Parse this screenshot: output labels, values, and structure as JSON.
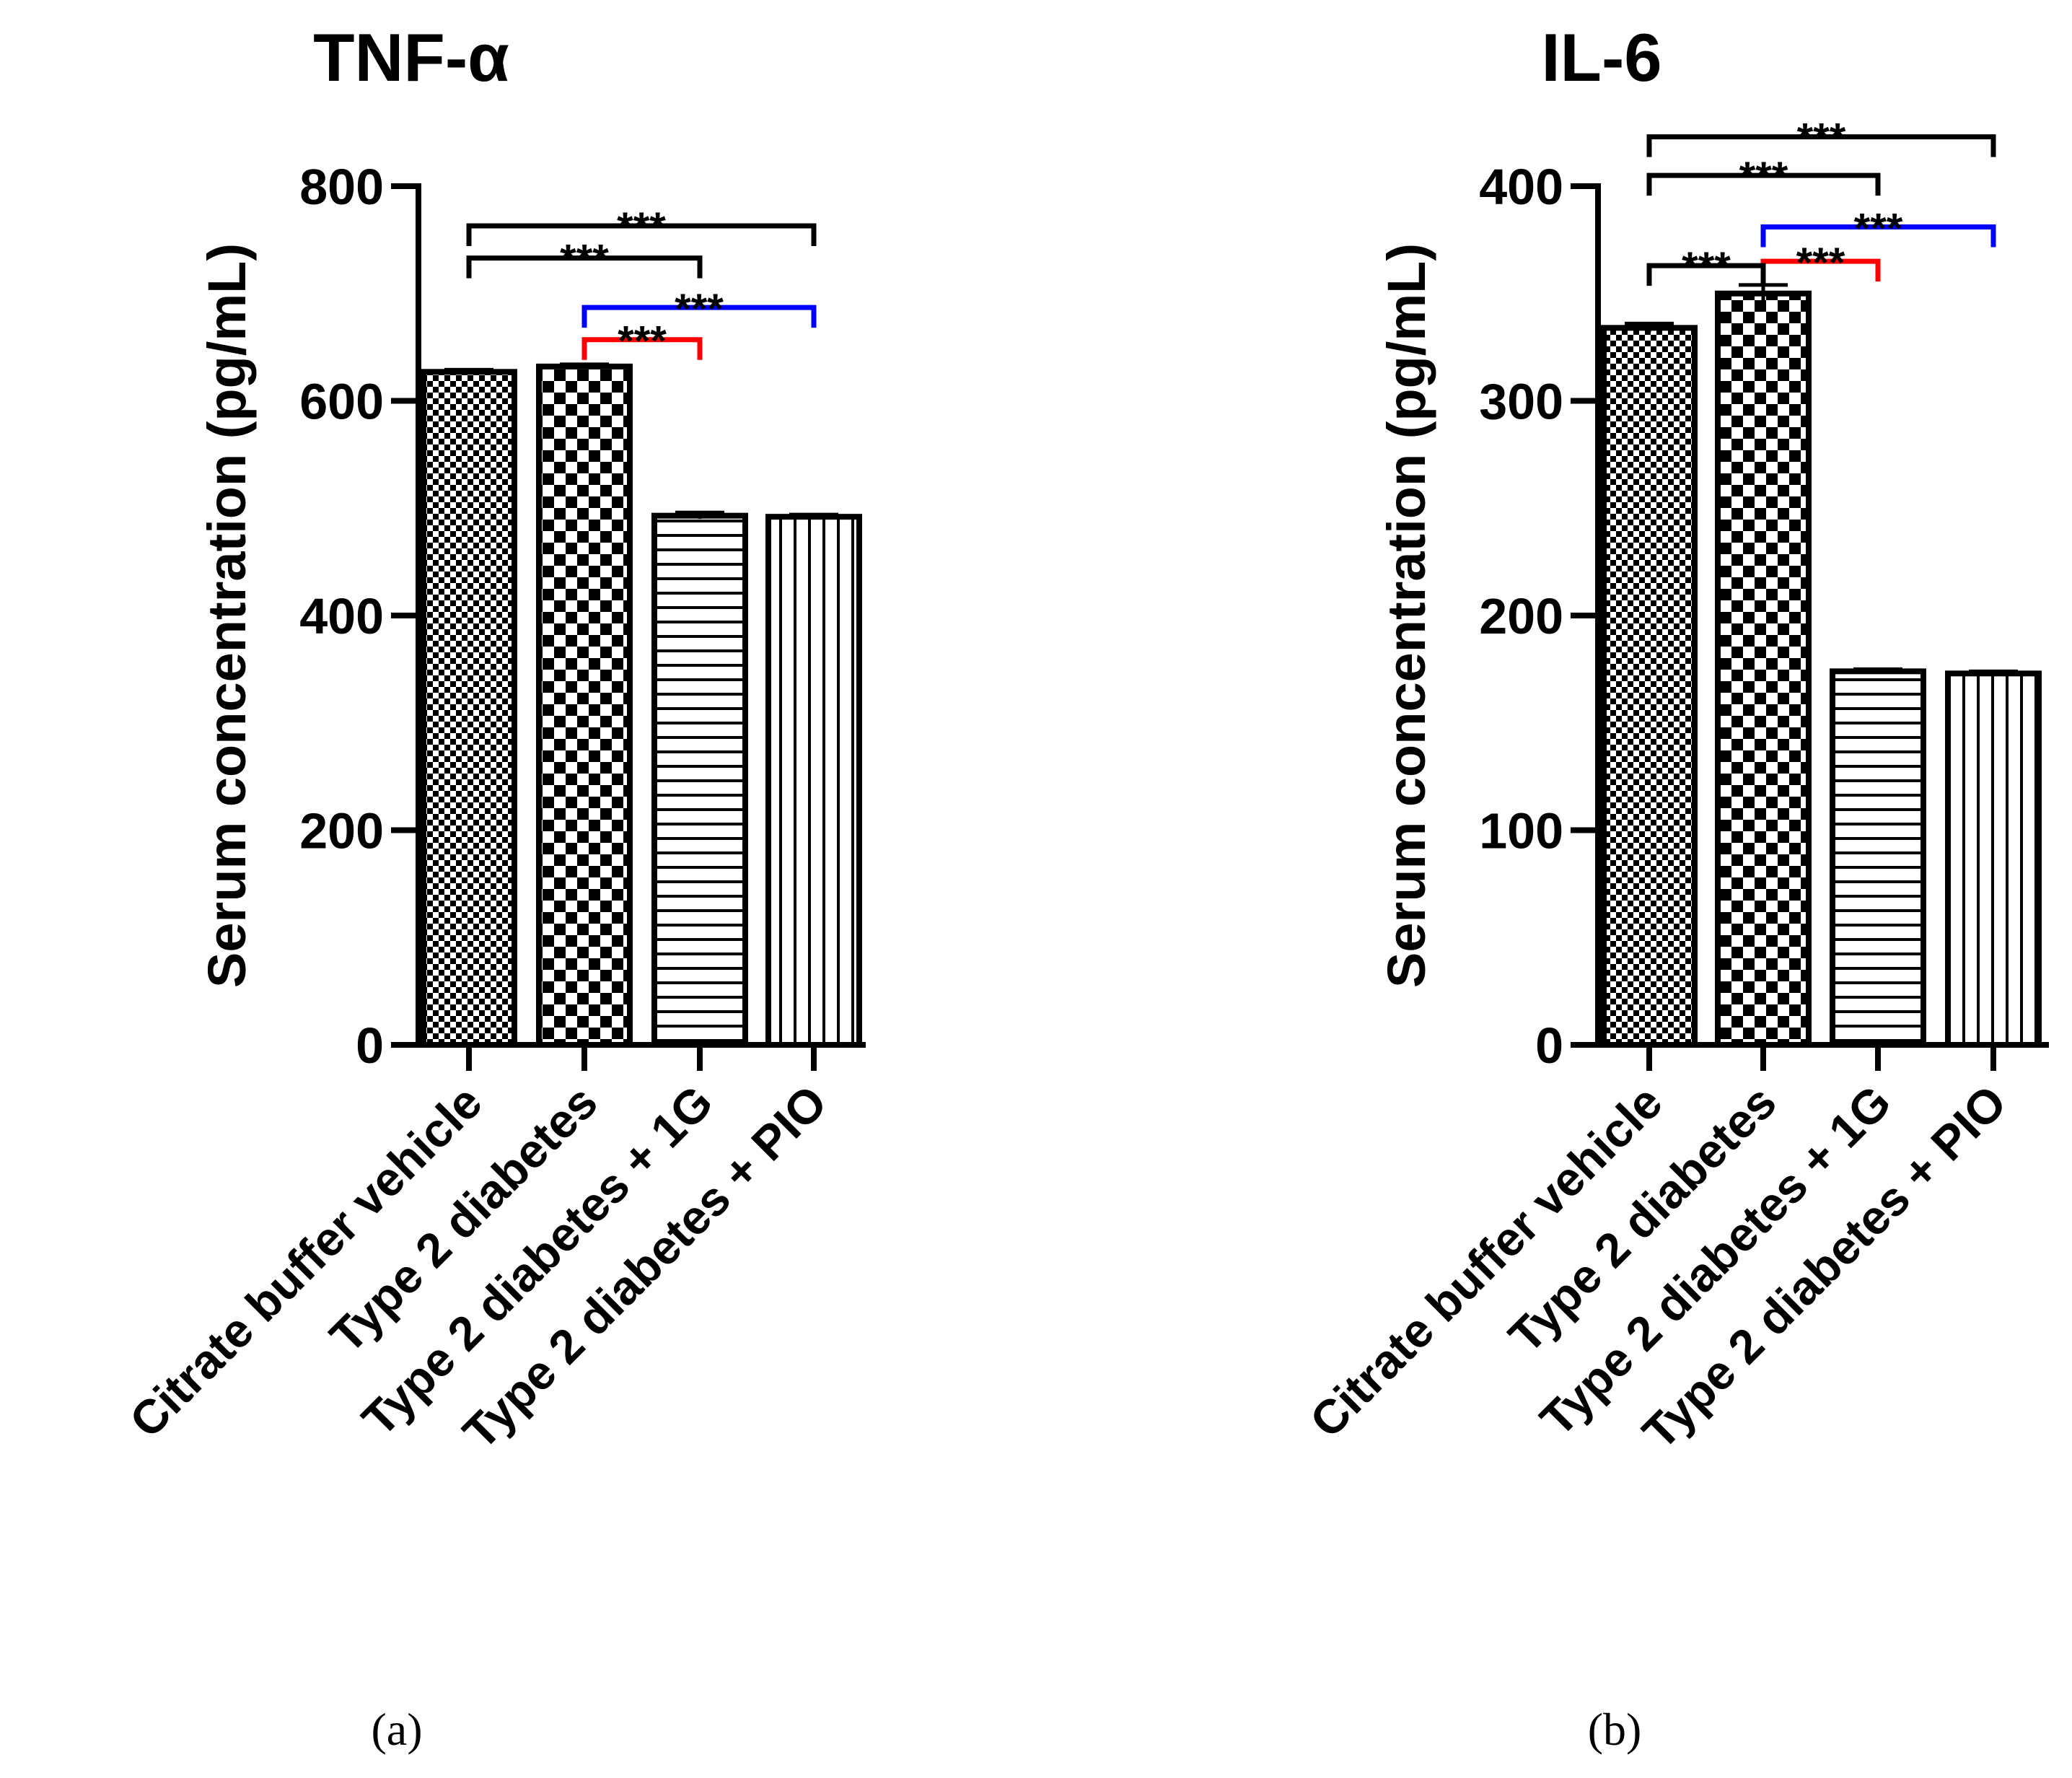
{
  "figure": {
    "colors": {
      "black": "#000000",
      "red": "#ff0000",
      "blue": "#0000ff"
    },
    "significance_label": "***"
  },
  "chart_data": [
    {
      "type": "bar",
      "panel": "a",
      "caption": "(a)",
      "title": "TNF-α",
      "ylabel": "Serum concentration (pg/mL)",
      "xlabel": "",
      "ylim": [
        0,
        800
      ],
      "yticks": [
        0,
        200,
        400,
        600,
        800
      ],
      "categories": [
        "Citrate buffer vehicle",
        "Type 2 diabetes",
        "Type 2 diabetes + 1G",
        "Type 2 diabetes + PIO"
      ],
      "values": [
        627,
        632,
        493,
        492
      ],
      "errors": [
        2,
        2,
        3,
        2
      ],
      "patterns": [
        "fine-checker",
        "coarse-checker",
        "horizontal-lines",
        "vertical-lines"
      ],
      "significance": [
        {
          "from": 0,
          "to": 3,
          "label": "***",
          "color": "#000000",
          "level": 763
        },
        {
          "from": 0,
          "to": 2,
          "label": "***",
          "color": "#000000",
          "level": 733
        },
        {
          "from": 1,
          "to": 3,
          "label": "***",
          "color": "#0000ff",
          "level": 687
        },
        {
          "from": 1,
          "to": 2,
          "label": "***",
          "color": "#ff0000",
          "level": 657
        }
      ]
    },
    {
      "type": "bar",
      "panel": "b",
      "caption": "(b)",
      "title": "IL-6",
      "ylabel": "Serum concentration (pg/mL)",
      "xlabel": "",
      "ylim": [
        0,
        400
      ],
      "yticks": [
        0,
        100,
        200,
        300,
        400
      ],
      "categories": [
        "Citrate buffer vehicle",
        "Type 2 diabetes",
        "Type 2 diabetes + 1G",
        "Type 2 diabetes + PIO"
      ],
      "values": [
        334,
        350,
        174,
        173
      ],
      "errors": [
        2,
        4,
        1,
        1
      ],
      "patterns": [
        "fine-checker",
        "coarse-checker",
        "horizontal-lines",
        "vertical-lines"
      ],
      "significance": [
        {
          "from": 0,
          "to": 3,
          "label": "***",
          "color": "#000000",
          "level": 423
        },
        {
          "from": 0,
          "to": 2,
          "label": "***",
          "color": "#000000",
          "level": 405
        },
        {
          "from": 1,
          "to": 3,
          "label": "***",
          "color": "#0000ff",
          "level": 381
        },
        {
          "from": 1,
          "to": 2,
          "label": "***",
          "color": "#ff0000",
          "level": 365
        },
        {
          "from": 0,
          "to": 1,
          "label": "***",
          "color": "#000000",
          "level": 363
        }
      ]
    }
  ]
}
